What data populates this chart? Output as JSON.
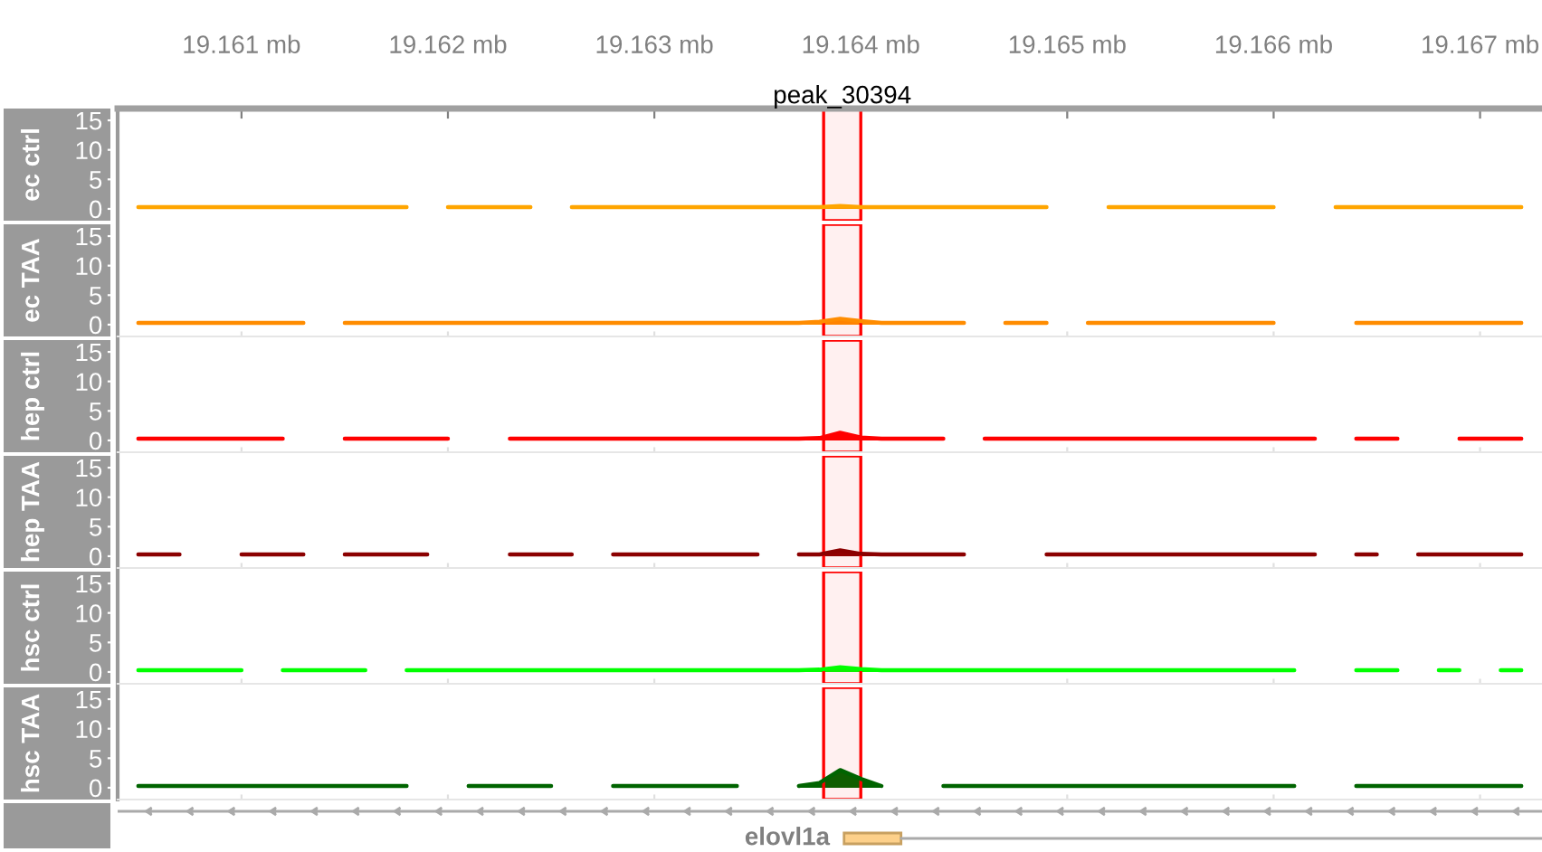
{
  "chart_data": [
    {
      "type": "area",
      "ylabel": "ec ctrl",
      "xlim": [
        19.1604,
        19.1673
      ],
      "xticks": [
        {
          "value": 19.161,
          "label": "19.161 mb"
        },
        {
          "value": 19.162,
          "label": "19.162 mb"
        },
        {
          "value": 19.163,
          "label": "19.163 mb"
        },
        {
          "value": 19.164,
          "label": "19.164 mb"
        },
        {
          "value": 19.165,
          "label": "19.165 mb"
        },
        {
          "value": 19.166,
          "label": "19.166 mb"
        },
        {
          "value": 19.167,
          "label": "19.167 mb"
        }
      ],
      "ylim": [
        -2,
        17
      ],
      "yticks": [
        0,
        5,
        10,
        15
      ],
      "bands": [
        {
          "axis": "x",
          "from": 19.16382,
          "to": 19.164,
          "label": "peak_30394",
          "color": "#ff0000"
        }
      ],
      "x": [
        19.1605,
        19.1606,
        19.1607,
        19.1608,
        19.1609,
        19.161,
        19.1611,
        19.1612,
        19.1613,
        19.1614,
        19.1615,
        19.1616,
        19.1617,
        19.1618,
        19.1619,
        19.162,
        19.1621,
        19.1622,
        19.1623,
        19.1624,
        19.1625,
        19.1626,
        19.1627,
        19.1628,
        19.1629,
        19.163,
        19.1631,
        19.1632,
        19.1633,
        19.1634,
        19.1635,
        19.1636,
        19.1637,
        19.1638,
        19.1639,
        19.164,
        19.1641,
        19.1642,
        19.1643,
        19.1644,
        19.1645,
        19.1646,
        19.1647,
        19.1648,
        19.1649,
        19.165,
        19.1651,
        19.1652,
        19.1653,
        19.1654,
        19.1655,
        19.1656,
        19.1657,
        19.1658,
        19.1659,
        19.166,
        19.1661,
        19.1662,
        19.1663,
        19.1664,
        19.1665,
        19.1666,
        19.1667,
        19.1668,
        19.1669,
        19.167,
        19.1671,
        19.1672
      ],
      "series": [
        {
          "color": "#ffa500",
          "values": [
            0.3,
            0.3,
            0.3,
            0.3,
            0.3,
            0.3,
            0.3,
            0.3,
            0.3,
            0.3,
            0.3,
            0.3,
            0.3,
            0.3,
            null,
            0.3,
            0.3,
            0.3,
            0.3,
            0.3,
            null,
            0.3,
            0.3,
            0.3,
            0.3,
            0.3,
            0.3,
            0.3,
            0.3,
            0.3,
            0.3,
            0.3,
            0.3,
            0.3,
            0.5,
            0.3,
            0.3,
            0.3,
            0.3,
            0.3,
            0.3,
            0.3,
            0.3,
            0.3,
            0.3,
            null,
            null,
            0.3,
            0.3,
            0.3,
            0.3,
            0.3,
            0.3,
            0.3,
            0.3,
            0.3,
            null,
            null,
            0.3,
            0.3,
            0.3,
            0.3,
            0.3,
            0.3,
            0.3,
            0.3,
            0.3,
            0.3
          ]
        }
      ],
      "tick_labels": "all"
    },
    {
      "type": "area",
      "ylabel": "ec TAA",
      "xlim": [
        19.1604,
        19.1673
      ],
      "xticks": [
        {
          "value": 19.161,
          "label": null
        },
        {
          "value": 19.162,
          "label": null
        },
        {
          "value": 19.163,
          "label": null
        },
        {
          "value": 19.164,
          "label": null
        },
        {
          "value": 19.165,
          "label": null
        },
        {
          "value": 19.166,
          "label": null
        },
        {
          "value": 19.167,
          "label": null
        }
      ],
      "ylim": [
        -2,
        17
      ],
      "yticks": [
        0,
        5,
        10,
        15
      ],
      "tick_labels": "y",
      "bands": [
        {
          "axis": "x",
          "from": 19.16382,
          "to": 19.164,
          "color": "#ff0000"
        }
      ],
      "x": [
        19.1605,
        19.1606,
        19.1607,
        19.1608,
        19.1609,
        19.161,
        19.1611,
        19.1612,
        19.1613,
        19.1614,
        19.1615,
        19.1616,
        19.1617,
        19.1618,
        19.1619,
        19.162,
        19.1621,
        19.1622,
        19.1623,
        19.1624,
        19.1625,
        19.1626,
        19.1627,
        19.1628,
        19.1629,
        19.163,
        19.1631,
        19.1632,
        19.1633,
        19.1634,
        19.1635,
        19.1636,
        19.1637,
        19.1638,
        19.1639,
        19.164,
        19.1641,
        19.1642,
        19.1643,
        19.1644,
        19.1645,
        19.1646,
        19.1647,
        19.1648,
        19.1649,
        19.165,
        19.1651,
        19.1652,
        19.1653,
        19.1654,
        19.1655,
        19.1656,
        19.1657,
        19.1658,
        19.1659,
        19.166,
        19.1661,
        19.1662,
        19.1663,
        19.1664,
        19.1665,
        19.1666,
        19.1667,
        19.1668,
        19.1669,
        19.167,
        19.1671,
        19.1672
      ],
      "series": [
        {
          "color": "#ff8c00",
          "values": [
            0.3,
            0.3,
            0.3,
            0.3,
            0.3,
            0.3,
            0.3,
            0.3,
            0.3,
            null,
            0.3,
            0.3,
            0.3,
            0.3,
            0.3,
            0.3,
            0.3,
            0.3,
            0.3,
            0.3,
            0.3,
            0.3,
            0.3,
            0.3,
            0.3,
            0.3,
            0.3,
            0.3,
            0.3,
            0.3,
            0.3,
            0.3,
            0.3,
            0.5,
            1.0,
            0.6,
            0.3,
            0.3,
            0.3,
            0.3,
            0.3,
            null,
            0.3,
            0.3,
            0.3,
            null,
            0.3,
            0.3,
            0.3,
            0.3,
            0.3,
            0.3,
            0.3,
            0.3,
            0.3,
            0.3,
            null,
            null,
            null,
            0.3,
            0.3,
            0.3,
            0.3,
            0.3,
            0.3,
            0.3,
            0.3,
            0.3
          ]
        }
      ]
    },
    {
      "type": "area",
      "ylabel": "hep ctrl",
      "xlim": [
        19.1604,
        19.1673
      ],
      "xticks": [
        {
          "value": 19.161,
          "label": null
        },
        {
          "value": 19.162,
          "label": null
        },
        {
          "value": 19.163,
          "label": null
        },
        {
          "value": 19.164,
          "label": null
        },
        {
          "value": 19.165,
          "label": null
        },
        {
          "value": 19.166,
          "label": null
        },
        {
          "value": 19.167,
          "label": null
        }
      ],
      "ylim": [
        -2,
        17
      ],
      "yticks": [
        0,
        5,
        10,
        15
      ],
      "tick_labels": "y",
      "bands": [
        {
          "axis": "x",
          "from": 19.16382,
          "to": 19.164,
          "color": "#ff0000"
        }
      ],
      "x": [
        19.1605,
        19.1606,
        19.1607,
        19.1608,
        19.1609,
        19.161,
        19.1611,
        19.1612,
        19.1613,
        19.1614,
        19.1615,
        19.1616,
        19.1617,
        19.1618,
        19.1619,
        19.162,
        19.1621,
        19.1622,
        19.1623,
        19.1624,
        19.1625,
        19.1626,
        19.1627,
        19.1628,
        19.1629,
        19.163,
        19.1631,
        19.1632,
        19.1633,
        19.1634,
        19.1635,
        19.1636,
        19.1637,
        19.1638,
        19.1639,
        19.164,
        19.1641,
        19.1642,
        19.1643,
        19.1644,
        19.1645,
        19.1646,
        19.1647,
        19.1648,
        19.1649,
        19.165,
        19.1651,
        19.1652,
        19.1653,
        19.1654,
        19.1655,
        19.1656,
        19.1657,
        19.1658,
        19.1659,
        19.166,
        19.1661,
        19.1662,
        19.1663,
        19.1664,
        19.1665,
        19.1666,
        19.1667,
        19.1668,
        19.1669,
        19.167,
        19.1671,
        19.1672
      ],
      "series": [
        {
          "color": "#ff0000",
          "values": [
            0.3,
            0.3,
            0.3,
            0.3,
            0.3,
            0.3,
            0.3,
            0.3,
            null,
            null,
            0.3,
            0.3,
            0.3,
            0.3,
            0.3,
            0.3,
            null,
            null,
            0.3,
            0.3,
            0.3,
            0.3,
            0.3,
            0.3,
            0.3,
            0.3,
            0.3,
            0.3,
            0.3,
            0.3,
            0.3,
            0.3,
            0.3,
            0.4,
            1.3,
            0.5,
            0.3,
            0.3,
            0.3,
            0.3,
            null,
            0.3,
            0.3,
            0.3,
            0.3,
            0.3,
            0.3,
            0.3,
            0.3,
            0.3,
            0.3,
            0.3,
            0.3,
            0.3,
            0.3,
            0.3,
            0.3,
            0.3,
            null,
            0.3,
            0.3,
            0.3,
            null,
            null,
            0.3,
            0.3,
            0.3,
            0.3
          ]
        }
      ]
    },
    {
      "type": "area",
      "ylabel": "hep TAA",
      "xlim": [
        19.1604,
        19.1673
      ],
      "xticks": [
        {
          "value": 19.161,
          "label": null
        },
        {
          "value": 19.162,
          "label": null
        },
        {
          "value": 19.163,
          "label": null
        },
        {
          "value": 19.164,
          "label": null
        },
        {
          "value": 19.165,
          "label": null
        },
        {
          "value": 19.166,
          "label": null
        },
        {
          "value": 19.167,
          "label": null
        }
      ],
      "ylim": [
        -2,
        17
      ],
      "yticks": [
        0,
        5,
        10,
        15
      ],
      "tick_labels": "y",
      "bands": [
        {
          "axis": "x",
          "from": 19.16382,
          "to": 19.164,
          "color": "#ff0000"
        }
      ],
      "x": [
        19.1605,
        19.1606,
        19.1607,
        19.1608,
        19.1609,
        19.161,
        19.1611,
        19.1612,
        19.1613,
        19.1614,
        19.1615,
        19.1616,
        19.1617,
        19.1618,
        19.1619,
        19.162,
        19.1621,
        19.1622,
        19.1623,
        19.1624,
        19.1625,
        19.1626,
        19.1627,
        19.1628,
        19.1629,
        19.163,
        19.1631,
        19.1632,
        19.1633,
        19.1634,
        19.1635,
        19.1636,
        19.1637,
        19.1638,
        19.1639,
        19.164,
        19.1641,
        19.1642,
        19.1643,
        19.1644,
        19.1645,
        19.1646,
        19.1647,
        19.1648,
        19.1649,
        19.165,
        19.1651,
        19.1652,
        19.1653,
        19.1654,
        19.1655,
        19.1656,
        19.1657,
        19.1658,
        19.1659,
        19.166,
        19.1661,
        19.1662,
        19.1663,
        19.1664,
        19.1665,
        19.1666,
        19.1667,
        19.1668,
        19.1669,
        19.167,
        19.1671,
        19.1672
      ],
      "series": [
        {
          "color": "#8b0000",
          "values": [
            0.3,
            0.3,
            0.3,
            null,
            null,
            0.3,
            0.3,
            0.3,
            0.3,
            null,
            0.3,
            0.3,
            0.3,
            0.3,
            0.3,
            null,
            null,
            null,
            0.3,
            0.3,
            0.3,
            0.3,
            null,
            0.3,
            0.3,
            0.3,
            0.3,
            0.3,
            0.3,
            0.3,
            0.3,
            null,
            0.3,
            0.3,
            1.0,
            0.4,
            0.3,
            0.3,
            0.3,
            0.3,
            0.3,
            null,
            null,
            null,
            0.3,
            0.3,
            0.3,
            0.3,
            0.3,
            0.3,
            0.3,
            0.3,
            0.3,
            0.3,
            0.3,
            0.3,
            0.3,
            0.3,
            null,
            0.3,
            0.3,
            null,
            0.3,
            0.3,
            0.3,
            0.3,
            0.3,
            0.3
          ]
        }
      ]
    },
    {
      "type": "area",
      "ylabel": "hsc ctrl",
      "xlim": [
        19.1604,
        19.1673
      ],
      "xticks": [
        {
          "value": 19.161,
          "label": null
        },
        {
          "value": 19.162,
          "label": null
        },
        {
          "value": 19.163,
          "label": null
        },
        {
          "value": 19.164,
          "label": null
        },
        {
          "value": 19.165,
          "label": null
        },
        {
          "value": 19.166,
          "label": null
        },
        {
          "value": 19.167,
          "label": null
        }
      ],
      "ylim": [
        -2,
        17
      ],
      "yticks": [
        0,
        5,
        10,
        15
      ],
      "tick_labels": "y",
      "bands": [
        {
          "axis": "x",
          "from": 19.16382,
          "to": 19.164,
          "color": "#ff0000"
        }
      ],
      "x": [
        19.1605,
        19.1606,
        19.1607,
        19.1608,
        19.1609,
        19.161,
        19.1611,
        19.1612,
        19.1613,
        19.1614,
        19.1615,
        19.1616,
        19.1617,
        19.1618,
        19.1619,
        19.162,
        19.1621,
        19.1622,
        19.1623,
        19.1624,
        19.1625,
        19.1626,
        19.1627,
        19.1628,
        19.1629,
        19.163,
        19.1631,
        19.1632,
        19.1633,
        19.1634,
        19.1635,
        19.1636,
        19.1637,
        19.1638,
        19.1639,
        19.164,
        19.1641,
        19.1642,
        19.1643,
        19.1644,
        19.1645,
        19.1646,
        19.1647,
        19.1648,
        19.1649,
        19.165,
        19.1651,
        19.1652,
        19.1653,
        19.1654,
        19.1655,
        19.1656,
        19.1657,
        19.1658,
        19.1659,
        19.166,
        19.1661,
        19.1662,
        19.1663,
        19.1664,
        19.1665,
        19.1666,
        19.1667,
        19.1668,
        19.1669,
        19.167,
        19.1671,
        19.1672
      ],
      "series": [
        {
          "color": "#00ff00",
          "values": [
            0.3,
            0.3,
            0.3,
            0.3,
            0.3,
            0.3,
            null,
            0.3,
            0.3,
            0.3,
            0.3,
            0.3,
            null,
            0.3,
            0.3,
            0.3,
            0.3,
            0.3,
            0.3,
            0.3,
            0.3,
            0.3,
            0.3,
            0.3,
            0.3,
            0.3,
            0.3,
            0.3,
            0.3,
            0.3,
            0.3,
            0.3,
            0.3,
            0.4,
            0.8,
            0.5,
            0.3,
            0.3,
            0.3,
            0.3,
            0.3,
            0.3,
            0.3,
            0.3,
            0.3,
            0.3,
            0.3,
            0.3,
            0.3,
            0.3,
            0.3,
            0.3,
            0.3,
            0.3,
            0.3,
            0.3,
            0.3,
            null,
            null,
            0.3,
            0.3,
            0.3,
            null,
            0.3,
            0.3,
            null,
            0.3,
            0.3
          ]
        }
      ]
    },
    {
      "type": "area",
      "ylabel": "hsc TAA",
      "xlim": [
        19.1604,
        19.1673
      ],
      "xticks": [
        {
          "value": 19.161,
          "label": null
        },
        {
          "value": 19.162,
          "label": null
        },
        {
          "value": 19.163,
          "label": null
        },
        {
          "value": 19.164,
          "label": null
        },
        {
          "value": 19.165,
          "label": null
        },
        {
          "value": 19.166,
          "label": null
        },
        {
          "value": 19.167,
          "label": null
        }
      ],
      "ylim": [
        -2,
        17
      ],
      "yticks": [
        0,
        5,
        10,
        15
      ],
      "tick_labels": "y",
      "bands": [
        {
          "axis": "x",
          "from": 19.16382,
          "to": 19.164,
          "color": "#ff0000"
        }
      ],
      "x": [
        19.1605,
        19.1606,
        19.1607,
        19.1608,
        19.1609,
        19.161,
        19.1611,
        19.1612,
        19.1613,
        19.1614,
        19.1615,
        19.1616,
        19.1617,
        19.1618,
        19.1619,
        19.162,
        19.1621,
        19.1622,
        19.1623,
        19.1624,
        19.1625,
        19.1626,
        19.1627,
        19.1628,
        19.1629,
        19.163,
        19.1631,
        19.1632,
        19.1633,
        19.1634,
        19.1635,
        19.1636,
        19.1637,
        19.1638,
        19.1639,
        19.164,
        19.1641,
        19.1642,
        19.1643,
        19.1644,
        19.1645,
        19.1646,
        19.1647,
        19.1648,
        19.1649,
        19.165,
        19.1651,
        19.1652,
        19.1653,
        19.1654,
        19.1655,
        19.1656,
        19.1657,
        19.1658,
        19.1659,
        19.166,
        19.1661,
        19.1662,
        19.1663,
        19.1664,
        19.1665,
        19.1666,
        19.1667,
        19.1668,
        19.1669,
        19.167,
        19.1671,
        19.1672
      ],
      "series": [
        {
          "color": "#006400",
          "values": [
            0.3,
            0.3,
            0.3,
            0.3,
            0.3,
            0.3,
            0.3,
            0.3,
            0.3,
            0.3,
            0.3,
            0.3,
            0.3,
            0.3,
            null,
            null,
            0.3,
            0.3,
            0.3,
            0.3,
            0.3,
            null,
            null,
            0.3,
            0.3,
            0.3,
            0.3,
            0.3,
            0.3,
            0.3,
            null,
            null,
            0.3,
            0.8,
            3.0,
            1.5,
            0.3,
            null,
            null,
            0.3,
            0.3,
            0.3,
            0.3,
            0.3,
            0.3,
            0.3,
            0.3,
            0.3,
            0.3,
            0.3,
            0.3,
            0.3,
            0.3,
            0.3,
            0.3,
            0.3,
            0.3,
            null,
            null,
            0.3,
            0.3,
            0.3,
            0.3,
            0.3,
            0.3,
            0.3,
            0.3,
            0.3
          ]
        }
      ]
    },
    {
      "type": "other",
      "annotations": [
        "elovl1a"
      ]
    }
  ]
}
